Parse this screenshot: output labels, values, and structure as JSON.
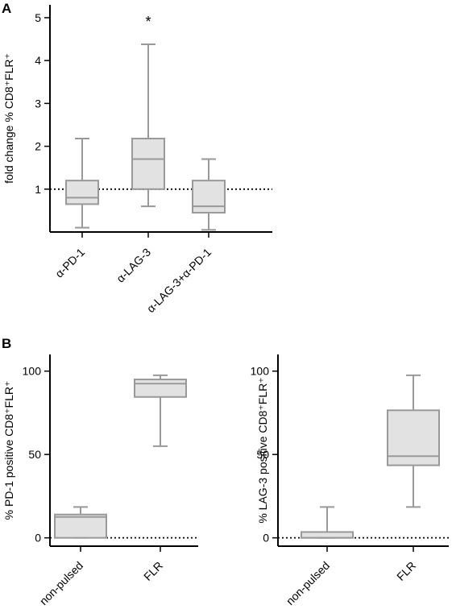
{
  "figure": {
    "panel_a_label": "A",
    "panel_b_label": "B"
  },
  "style": {
    "box_fill": "#e2e2e2",
    "box_stroke": "#999999",
    "axis_color": "#000000",
    "reference_line_color": "#000000"
  },
  "chart_data": [
    {
      "id": "A",
      "type": "box",
      "title": "",
      "ylabel": "fold change % CD8⁺FLR⁺",
      "xlabel": "",
      "ylim": [
        0,
        5.3
      ],
      "yticks": [
        1,
        2,
        3,
        4,
        5
      ],
      "reference_line": 1,
      "categories": [
        "α-PD-1",
        "α-LAG-3",
        "α-LAG-3+α-PD-1"
      ],
      "boxes": [
        {
          "min": 0.1,
          "q1": 0.65,
          "median": 0.8,
          "q3": 1.2,
          "max": 2.18
        },
        {
          "min": 0.6,
          "q1": 1.0,
          "median": 1.7,
          "q3": 2.18,
          "max": 4.38
        },
        {
          "min": 0.05,
          "q1": 0.45,
          "median": 0.6,
          "q3": 1.2,
          "max": 1.7
        }
      ],
      "annotations": [
        {
          "category": "α-LAG-3",
          "text": "*"
        }
      ],
      "grid": false,
      "legend": "none"
    },
    {
      "id": "B-left",
      "type": "box",
      "title": "",
      "ylabel": "% PD-1 positive CD8⁺FLR⁺",
      "xlabel": "",
      "ylim": [
        -5,
        110
      ],
      "yticks": [
        0,
        50,
        100
      ],
      "reference_line": 0,
      "categories": [
        "non-pulsed",
        "FLR"
      ],
      "boxes": [
        {
          "min": 0,
          "q1": 0,
          "median": 12.5,
          "q3": 14,
          "max": 18.5
        },
        {
          "min": 55,
          "q1": 84.5,
          "median": 92.5,
          "q3": 95,
          "max": 97.5
        }
      ],
      "annotations": [],
      "grid": false,
      "legend": "none"
    },
    {
      "id": "B-right",
      "type": "box",
      "title": "",
      "ylabel": "% LAG-3 positive CD8⁺FLR⁺",
      "xlabel": "",
      "ylim": [
        -5,
        110
      ],
      "yticks": [
        0,
        50,
        100
      ],
      "reference_line": 0,
      "categories": [
        "non-pulsed",
        "FLR"
      ],
      "boxes": [
        {
          "min": 0,
          "q1": 0,
          "median": 0,
          "q3": 3.5,
          "max": 18.5
        },
        {
          "min": 18.5,
          "q1": 43.5,
          "median": 49,
          "q3": 76.5,
          "max": 97.5
        }
      ],
      "annotations": [],
      "grid": false,
      "legend": "none"
    }
  ]
}
